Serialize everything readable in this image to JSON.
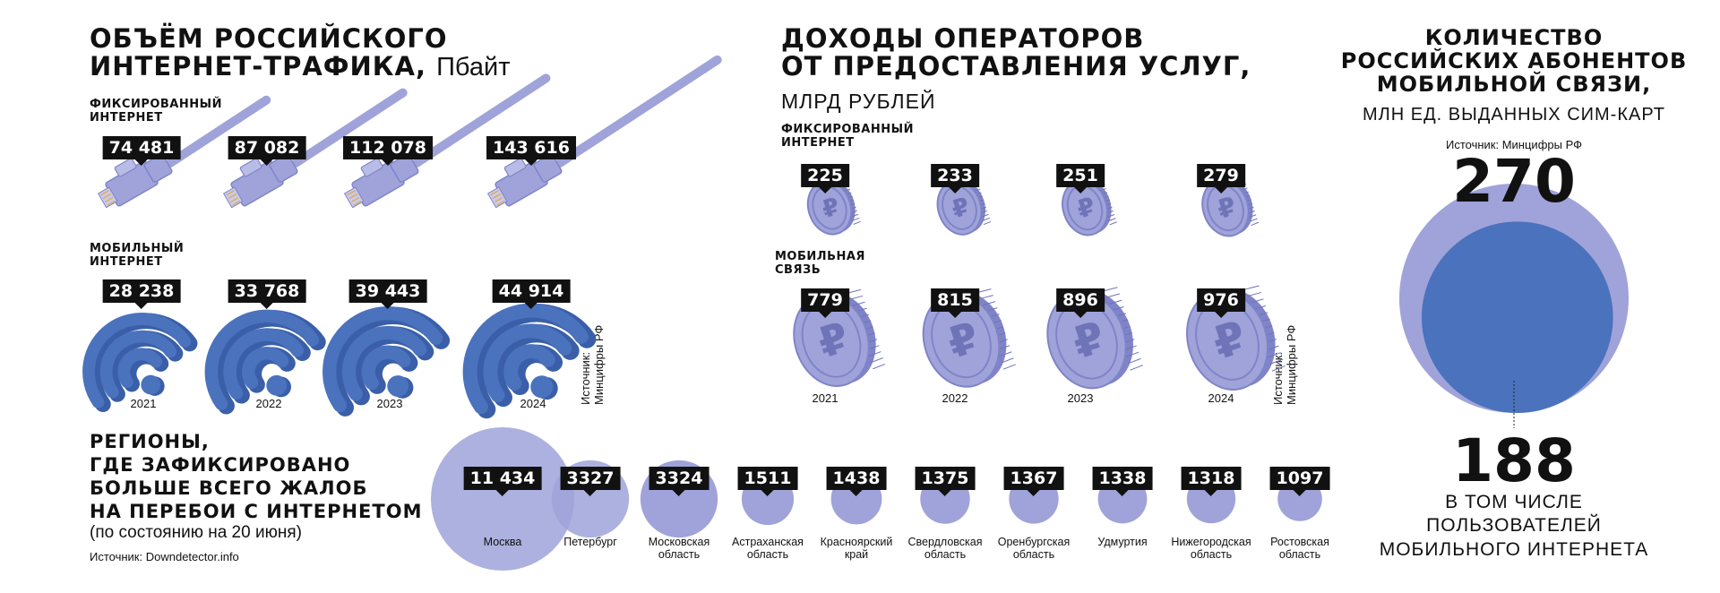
{
  "traffic": {
    "title_line1": "Объём российского",
    "title_line2": "интернет-трафика,",
    "unit": "Пбайт",
    "fixed_label_1": "Фиксированный",
    "fixed_label_2": "интернет",
    "mobile_label_1": "Мобильный",
    "mobile_label_2": "интернет",
    "source": "Источник:",
    "source_org": "Минцифры РФ"
  },
  "revenue": {
    "title_line1": "Доходы операторов",
    "title_line2": "от предоставления услуг,",
    "unit": "млрд рублей",
    "fixed_label_1": "Фиксированный",
    "fixed_label_2": "интернет",
    "mobile_label_1": "Мобильная",
    "mobile_label_2": "связь",
    "source": "Источник:",
    "source_org": "Минцифры РФ"
  },
  "subscribers": {
    "title_line1": "Количество",
    "title_line2": "российских абонентов",
    "title_line3": "мобильной связи,",
    "unit": "млн ед. выданных сим-карт",
    "source": "Источник: Минцифры РФ",
    "total": "270",
    "internet": "188",
    "internet_caption_1": "в том числе",
    "internet_caption_2": "пользователей",
    "internet_caption_3": "мобильного интернета"
  },
  "regions": {
    "title_line1": "Регионы,",
    "title_line2": "где зафиксировано",
    "title_line3": "больше всего жалоб",
    "title_line4": "на перебои с интернетом",
    "subtitle": "(по состоянию на 20 июня)",
    "source": "Источник: Downdetector.info"
  },
  "colors": {
    "lavender": "#9fa3d9",
    "lavender_dark": "#7f84c8",
    "blue": "#4a72bd",
    "blue_dark": "#3a5fa8",
    "label_bg": "#111111"
  },
  "chart_data": [
    {
      "type": "bar",
      "title": "Объём российского интернет-трафика, Пбайт",
      "categories": [
        "2021",
        "2022",
        "2023",
        "2024"
      ],
      "series": [
        {
          "name": "Фиксированный интернет",
          "values": [
            74481,
            87082,
            112078,
            143616
          ],
          "labels": [
            "74 481",
            "87 082",
            "112 078",
            "143 616"
          ]
        },
        {
          "name": "Мобильный интернет",
          "values": [
            28238,
            33768,
            39443,
            44914
          ],
          "labels": [
            "28 238",
            "33 768",
            "39 443",
            "44 914"
          ]
        }
      ]
    },
    {
      "type": "bar",
      "title": "Доходы операторов от предоставления услуг, млрд рублей",
      "categories": [
        "2021",
        "2022",
        "2023",
        "2024"
      ],
      "series": [
        {
          "name": "Фиксированный интернет",
          "values": [
            225,
            233,
            251,
            279
          ],
          "labels": [
            "225",
            "233",
            "251",
            "279"
          ]
        },
        {
          "name": "Мобильная связь",
          "values": [
            779,
            815,
            896,
            976
          ],
          "labels": [
            "779",
            "815",
            "896",
            "976"
          ]
        }
      ]
    },
    {
      "type": "pie",
      "title": "Количество российских абонентов мобильной связи, млн ед. выданных сим-карт",
      "values": [
        270,
        188
      ],
      "categories": [
        "270",
        "188"
      ]
    },
    {
      "type": "bar",
      "title": "Регионы, где зафиксировано больше всего жалоб на перебои с интернетом",
      "categories": [
        "Москва",
        "Петербург",
        "Московская область",
        "Астраханская область",
        "Красноярский край",
        "Свердловская область",
        "Оренбургская область",
        "Удмуртия",
        "Нижегородская область",
        "Ростовская область"
      ],
      "values": [
        11434,
        3327,
        3324,
        1511,
        1438,
        1375,
        1367,
        1338,
        1318,
        1097
      ],
      "labels": [
        "11 434",
        "3327",
        "3324",
        "1511",
        "1438",
        "1375",
        "1367",
        "1338",
        "1318",
        "1097"
      ]
    }
  ]
}
